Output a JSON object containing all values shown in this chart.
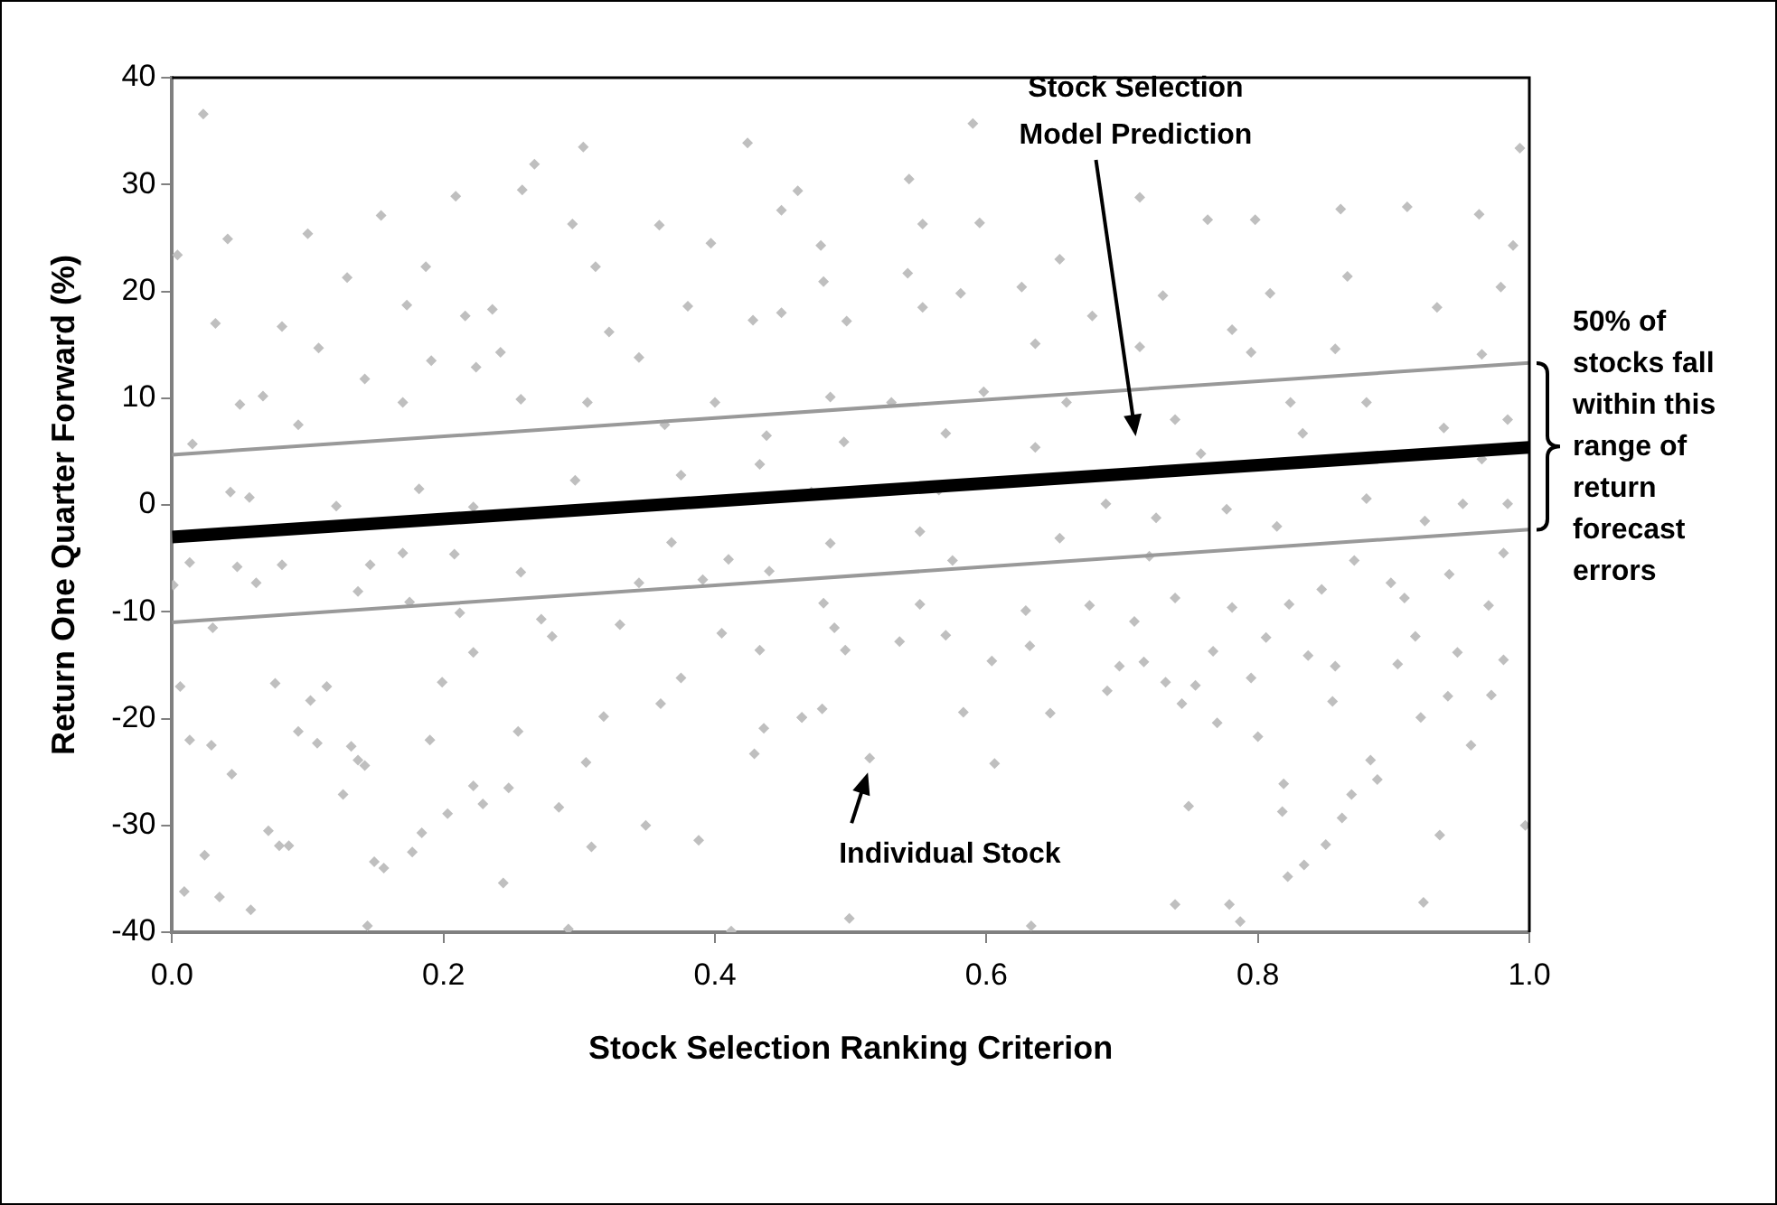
{
  "chart_data": {
    "type": "scatter",
    "xlabel": "Stock Selection Ranking Criterion",
    "ylabel": "Return One Quarter Forward (%)",
    "xlim": [
      0,
      1
    ],
    "xticks": [
      {
        "value": 0,
        "label": "0.0"
      },
      {
        "value": 0.2,
        "label": "0.2"
      },
      {
        "value": 0.4,
        "label": "0.4"
      },
      {
        "value": 0.6,
        "label": "0.6"
      },
      {
        "value": 0.8,
        "label": "0.8"
      },
      {
        "value": 1,
        "label": "1.0"
      }
    ],
    "ylim": [
      -40,
      40
    ],
    "yticks": [
      -40,
      -30,
      -20,
      -10,
      0,
      10,
      20,
      30,
      40
    ],
    "series": [
      {
        "type": "scatter",
        "color": "#bfbfbf",
        "marker": "diamond",
        "x": [
          0.023,
          0.004,
          0.041,
          0.032,
          0.1,
          0.129,
          0.154,
          0.209,
          0.267,
          0.303,
          0.258,
          0.295,
          0.187,
          0.424,
          0.461,
          0.449,
          0.359,
          0.081,
          0.216,
          0.312,
          0.397,
          0.067,
          0.108,
          0.173,
          0.236,
          0.322,
          0.428,
          0.38,
          0.142,
          0.191,
          0.224,
          0.242,
          0.344,
          0.449,
          0.015,
          0.05,
          0.093,
          0.17,
          0.257,
          0.306,
          0.363,
          0.4,
          0.438,
          0.043,
          0.057,
          0.121,
          0.182,
          0.222,
          0.297,
          0.375,
          0.433,
          0.013,
          0.048,
          0.081,
          0.146,
          0.17,
          0.208,
          0.257,
          0.368,
          0.41,
          0.44,
          0.59,
          0.993,
          0.543,
          0.553,
          0.478,
          0.48,
          0.542,
          0.595,
          0.654,
          0.713,
          0.763,
          0.798,
          0.861,
          0.91,
          0.963,
          0.988,
          0.581,
          0.626,
          0.678,
          0.73,
          0.781,
          0.809,
          0.866,
          0.932,
          0.979,
          0.497,
          0.553,
          0.636,
          0.713,
          0.795,
          0.857,
          0.965,
          0.485,
          0.53,
          0.598,
          0.659,
          0.739,
          0.824,
          0.88,
          0.937,
          0.984,
          0.495,
          0.57,
          0.636,
          0.758,
          0.833,
          0.965,
          0.471,
          0.565,
          0.688,
          0.777,
          0.88,
          0.951,
          0.485,
          0.551,
          0.654,
          0.725,
          0.814,
          0.923,
          0.984,
          0.575,
          0.72,
          0.871,
          0.001,
          0.03,
          0.006,
          0.013,
          0.009,
          0.024,
          0.029,
          0.044,
          0.058,
          0.035,
          0.071,
          0.079,
          0.086,
          0.076,
          0.093,
          0.102,
          0.107,
          0.114,
          0.126,
          0.132,
          0.137,
          0.142,
          0.144,
          0.149,
          0.156,
          0.177,
          0.184,
          0.19,
          0.199,
          0.203,
          0.222,
          0.229,
          0.244,
          0.248,
          0.255,
          0.285,
          0.292,
          0.305,
          0.309,
          0.318,
          0.349,
          0.36,
          0.388,
          0.412,
          0.429,
          0.436,
          0.464,
          0.175,
          0.222,
          0.28,
          0.33,
          0.375,
          0.405,
          0.433,
          0.062,
          0.137,
          0.212,
          0.272,
          0.344,
          0.391,
          0.514,
          0.499,
          0.633,
          0.583,
          0.647,
          0.606,
          0.749,
          0.739,
          0.779,
          0.787,
          0.8,
          0.819,
          0.818,
          0.822,
          0.834,
          0.85,
          0.855,
          0.862,
          0.869,
          0.883,
          0.888,
          0.92,
          0.934,
          0.922,
          0.957,
          0.997,
          0.94,
          0.972,
          0.689,
          0.744,
          0.77,
          0.479,
          0.464,
          0.496,
          0.536,
          0.57,
          0.604,
          0.632,
          0.698,
          0.716,
          0.732,
          0.754,
          0.767,
          0.795,
          0.806,
          0.837,
          0.857,
          0.903,
          0.916,
          0.947,
          0.981,
          0.488,
          0.48,
          0.551,
          0.629,
          0.676,
          0.709,
          0.739,
          0.781,
          0.823,
          0.847,
          0.898,
          0.908,
          0.941,
          0.97,
          0.981
        ],
        "values": [
          36.6,
          23.4,
          24.9,
          17,
          25.4,
          21.3,
          27.1,
          28.9,
          31.9,
          33.5,
          29.5,
          26.3,
          22.3,
          33.9,
          29.4,
          27.6,
          26.2,
          16.7,
          17.7,
          22.3,
          24.5,
          10.2,
          14.7,
          18.7,
          18.3,
          16.2,
          17.3,
          18.6,
          11.8,
          13.5,
          12.9,
          14.3,
          13.8,
          18,
          5.7,
          9.4,
          7.5,
          9.6,
          9.9,
          9.6,
          7.5,
          9.6,
          6.5,
          1.2,
          0.7,
          -0.1,
          1.5,
          -0.2,
          2.3,
          2.8,
          3.8,
          -5.4,
          -5.8,
          -5.6,
          -5.6,
          -4.5,
          -4.6,
          -6.3,
          -3.5,
          -5.1,
          -6.2,
          35.7,
          33.4,
          30.5,
          26.3,
          24.3,
          20.9,
          21.7,
          26.4,
          23,
          28.8,
          26.7,
          26.7,
          27.7,
          27.9,
          27.2,
          24.3,
          19.8,
          20.4,
          17.7,
          19.6,
          16.4,
          19.8,
          21.4,
          18.5,
          20.4,
          17.2,
          18.5,
          15.1,
          14.8,
          14.3,
          14.6,
          14.1,
          10.1,
          9.6,
          10.6,
          9.6,
          8,
          9.6,
          9.6,
          7.2,
          8,
          5.9,
          6.7,
          5.4,
          4.8,
          6.7,
          4.3,
          1.2,
          1.4,
          0.1,
          -0.4,
          0.6,
          0.1,
          -3.6,
          -2.5,
          -3.1,
          -1.2,
          -2,
          -1.5,
          0.1,
          -5.2,
          -4.8,
          -5.2,
          -7.5,
          -11.5,
          -17,
          -22,
          -36.2,
          -32.8,
          -22.5,
          -25.2,
          -37.9,
          -36.7,
          -30.5,
          -31.9,
          -31.9,
          -16.7,
          -21.2,
          -18.3,
          -22.3,
          -17,
          -27.1,
          -22.6,
          -23.9,
          -24.4,
          -39.4,
          -33.4,
          -34,
          -32.5,
          -30.7,
          -22,
          -16.6,
          -28.9,
          -26.3,
          -28,
          -35.4,
          -26.5,
          -21.2,
          -28.3,
          -39.7,
          -24.1,
          -32,
          -19.8,
          -30,
          -18.6,
          -31.4,
          -39.9,
          -23.3,
          -20.9,
          -19.9,
          -9.1,
          -13.8,
          -12.3,
          -11.2,
          -16.2,
          -12,
          -13.6,
          -7.3,
          -8.1,
          -10.1,
          -10.7,
          -7.3,
          -7,
          -23.7,
          -38.7,
          -39.4,
          -19.4,
          -19.5,
          -24.2,
          -28.2,
          -37.4,
          -37.4,
          -39,
          -21.7,
          -26.1,
          -28.7,
          -34.8,
          -33.7,
          -31.8,
          -18.4,
          -29.3,
          -27.1,
          -23.9,
          -25.7,
          -19.9,
          -30.9,
          -37.2,
          -22.5,
          -30,
          -17.9,
          -17.8,
          -17.4,
          -18.6,
          -20.4,
          -19.1,
          -19.9,
          -13.6,
          -12.8,
          -12.2,
          -14.6,
          -13.2,
          -15.1,
          -14.7,
          -16.6,
          -16.9,
          -13.7,
          -16.2,
          -12.4,
          -14.1,
          -15.1,
          -14.9,
          -12.3,
          -13.8,
          -14.5,
          -11.5,
          -9.2,
          -9.3,
          -9.9,
          -9.4,
          -10.9,
          -8.7,
          -9.6,
          -9.3,
          -7.9,
          -7.3,
          -8.7,
          -6.5,
          -9.4,
          -4.5
        ]
      },
      {
        "type": "line",
        "color": "#000000",
        "marker": "none",
        "x": [
          0,
          1
        ],
        "values": [
          -3,
          5.4
        ]
      },
      {
        "type": "line",
        "color": "#999999",
        "marker": "none",
        "x": [
          0,
          1
        ],
        "values": [
          4.7,
          13.3
        ]
      },
      {
        "type": "line",
        "color": "#999999",
        "marker": "none",
        "x": [
          0,
          1
        ],
        "values": [
          -11,
          -2.3
        ]
      }
    ],
    "annotations": [
      "Stock Selection Model Prediction",
      {
        "text": "Individual Stock",
        "x": 0.514,
        "y": -23.7
      },
      "50% of stocks fall within this range of return forecast errors"
    ]
  }
}
